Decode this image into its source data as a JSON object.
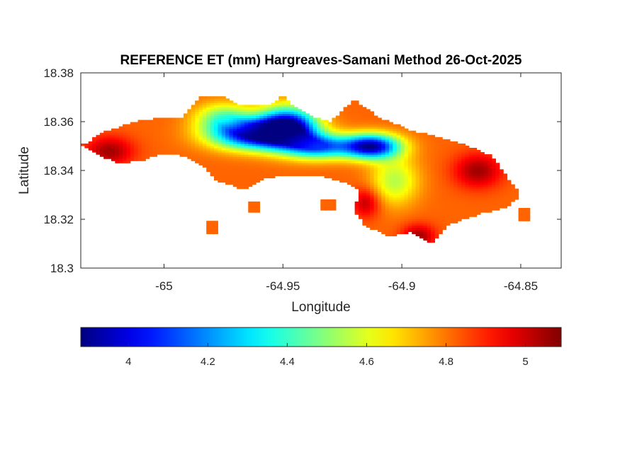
{
  "chart_data": {
    "type": "heatmap",
    "title": "REFERENCE ET (mm) Hargreaves-Samani Method  26-Oct-2025",
    "xlabel": "Longitude",
    "ylabel": "Latitude",
    "xlim": [
      -65.035,
      -64.833
    ],
    "ylim": [
      18.3,
      18.38
    ],
    "x_ticks": [
      -65,
      -64.95,
      -64.9,
      -64.85
    ],
    "x_tick_labels": [
      "-65",
      "-64.95",
      "-64.9",
      "-64.85"
    ],
    "y_ticks": [
      18.3,
      18.32,
      18.34,
      18.36,
      18.38
    ],
    "y_tick_labels": [
      "18.3",
      "18.32",
      "18.34",
      "18.36",
      "18.38"
    ],
    "colorbar": {
      "colormap": "jet",
      "range": [
        3.88,
        5.09
      ],
      "ticks": [
        4,
        4.2,
        4.4,
        4.6,
        4.8,
        5
      ],
      "tick_labels": [
        "4",
        "4.2",
        "4.4",
        "4.6",
        "4.8",
        "5"
      ],
      "orientation": "horizontal",
      "location": "bottom"
    },
    "field": {
      "land_outline": [
        [
          -65.033,
          18.351
        ],
        [
          -65.025,
          18.356
        ],
        [
          -65.012,
          18.36
        ],
        [
          -65.0,
          18.362
        ],
        [
          -64.992,
          18.362
        ],
        [
          -64.985,
          18.37
        ],
        [
          -64.975,
          18.37
        ],
        [
          -64.968,
          18.367
        ],
        [
          -64.955,
          18.367
        ],
        [
          -64.95,
          18.371
        ],
        [
          -64.945,
          18.366
        ],
        [
          -64.938,
          18.362
        ],
        [
          -64.93,
          18.36
        ],
        [
          -64.92,
          18.369
        ],
        [
          -64.91,
          18.362
        ],
        [
          -64.895,
          18.356
        ],
        [
          -64.885,
          18.354
        ],
        [
          -64.875,
          18.351
        ],
        [
          -64.862,
          18.346
        ],
        [
          -64.855,
          18.336
        ],
        [
          -64.85,
          18.33
        ],
        [
          -64.856,
          18.325
        ],
        [
          -64.868,
          18.322
        ],
        [
          -64.88,
          18.318
        ],
        [
          -64.885,
          18.313
        ],
        [
          -64.888,
          18.31
        ],
        [
          -64.896,
          18.315
        ],
        [
          -64.905,
          18.313
        ],
        [
          -64.915,
          18.317
        ],
        [
          -64.92,
          18.323
        ],
        [
          -64.918,
          18.332
        ],
        [
          -64.924,
          18.335
        ],
        [
          -64.935,
          18.338
        ],
        [
          -64.95,
          18.338
        ],
        [
          -64.96,
          18.336
        ],
        [
          -64.966,
          18.332
        ],
        [
          -64.978,
          18.336
        ],
        [
          -64.985,
          18.343
        ],
        [
          -64.992,
          18.346
        ],
        [
          -65.0,
          18.347
        ],
        [
          -65.01,
          18.344
        ],
        [
          -65.02,
          18.343
        ],
        [
          -65.028,
          18.347
        ],
        [
          -65.035,
          18.351
        ]
      ],
      "minor_land_patches": [
        [
          -64.962,
          18.325
        ],
        [
          -64.98,
          18.317
        ],
        [
          -64.931,
          18.326
        ],
        [
          -64.849,
          18.322
        ]
      ],
      "centers": [
        {
          "lon": -64.962,
          "lat": 18.355,
          "value": 3.95,
          "radius_lon": 0.018,
          "radius_lat": 0.006
        },
        {
          "lon": -64.948,
          "lat": 18.358,
          "value": 3.95,
          "radius_lon": 0.012,
          "radius_lat": 0.008
        },
        {
          "lon": -64.913,
          "lat": 18.35,
          "value": 3.93,
          "radius_lon": 0.012,
          "radius_lat": 0.005
        },
        {
          "lon": -64.935,
          "lat": 18.35,
          "value": 4.2,
          "radius_lon": 0.013,
          "radius_lat": 0.005
        },
        {
          "lon": -64.903,
          "lat": 18.336,
          "value": 4.55,
          "radius_lon": 0.01,
          "radius_lat": 0.01
        },
        {
          "lon": -64.975,
          "lat": 18.362,
          "value": 4.5,
          "radius_lon": 0.012,
          "radius_lat": 0.006
        },
        {
          "lon": -65.023,
          "lat": 18.348,
          "value": 5.05,
          "radius_lon": 0.01,
          "radius_lat": 0.006
        },
        {
          "lon": -64.868,
          "lat": 18.34,
          "value": 5.05,
          "radius_lon": 0.01,
          "radius_lat": 0.007
        },
        {
          "lon": -64.893,
          "lat": 18.313,
          "value": 5.05,
          "radius_lon": 0.007,
          "radius_lat": 0.005
        },
        {
          "lon": -64.915,
          "lat": 18.327,
          "value": 5.02,
          "radius_lon": 0.006,
          "radius_lat": 0.006
        }
      ],
      "background_value": 4.82
    }
  }
}
